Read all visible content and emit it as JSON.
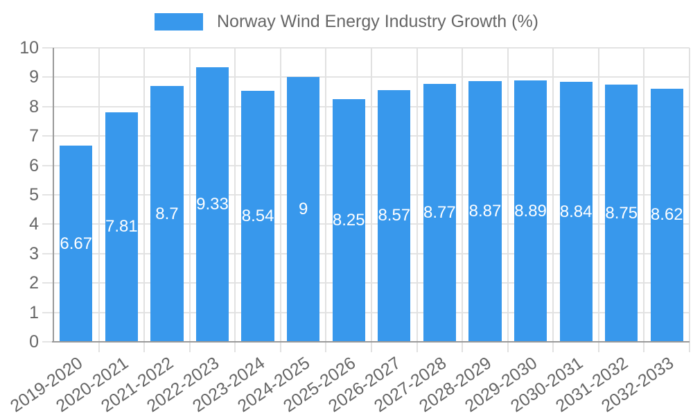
{
  "legend": {
    "label": "Norway Wind Energy Industry Growth (%)"
  },
  "chart_data": {
    "type": "bar",
    "title": "Norway Wind Energy Industry Growth (%)",
    "categories": [
      "2019-2020",
      "2020-2021",
      "2021-2022",
      "2022-2023",
      "2023-2024",
      "2024-2025",
      "2025-2026",
      "2026-2027",
      "2027-2028",
      "2028-2029",
      "2029-2030",
      "2030-2031",
      "2031-2032",
      "2032-2033"
    ],
    "values": [
      6.67,
      7.81,
      8.7,
      9.33,
      8.54,
      9,
      8.25,
      8.57,
      8.77,
      8.87,
      8.89,
      8.84,
      8.75,
      8.62
    ],
    "value_labels": [
      "6.67",
      "7.81",
      "8.7",
      "9.33",
      "8.54",
      "9",
      "8.25",
      "8.57",
      "8.77",
      "8.87",
      "8.89",
      "8.84",
      "8.75",
      "8.62"
    ],
    "xlabel": "",
    "ylabel": "",
    "ylim": [
      0,
      10
    ],
    "yticks": [
      "0",
      "1",
      "2",
      "3",
      "4",
      "5",
      "6",
      "7",
      "8",
      "9",
      "10"
    ],
    "grid": true,
    "legend_position": "top",
    "colors": {
      "bar": "#3898EC",
      "grid": "#E3E3E3",
      "axis": "#999999",
      "tick_text": "#666666",
      "value_label": "#FFFFFF"
    }
  }
}
